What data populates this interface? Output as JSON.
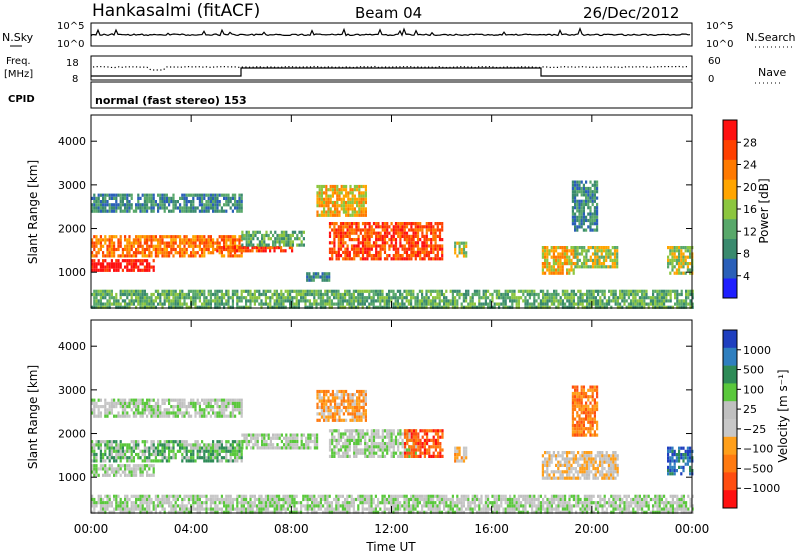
{
  "header": {
    "station": "Hankasalmi (fitACF)",
    "beam": "Beam 04",
    "date": "26/Dec/2012"
  },
  "top_panels": {
    "nsky_label": "N.Sky",
    "nsearch_label": "N.Search",
    "left_ticks": [
      "10^5",
      "10^0"
    ],
    "right_ticks": [
      "10^5",
      "10^0"
    ],
    "freq_label": "Freq.",
    "freq_unit": "[MHz]",
    "freq_ticks": [
      "18",
      "8"
    ],
    "nave_ticks": [
      "60",
      "0"
    ],
    "nave_label": "Nave",
    "cpid_label": "CPID",
    "cpid_text": "normal (fast stereo) 153"
  },
  "colors": {
    "power_scale": [
      "#1f1fff",
      "#2a5fb8",
      "#3a8a6e",
      "#58a86a",
      "#8cc63f",
      "#ffa500",
      "#ff7a00",
      "#ff4000",
      "#ff1010"
    ],
    "velocity_scale": [
      "#1f3fbf",
      "#2f7fbf",
      "#2e8b57",
      "#5ac83c",
      "#c0c0c0",
      "#c8c8c8",
      "#ff9f1a",
      "#ff7a10",
      "#ff4d10",
      "#ff1010"
    ]
  },
  "chart_data": [
    {
      "type": "heatmap",
      "quantity": "Power",
      "ylabel": "Slant Range [km]",
      "yticks": [
        "1000",
        "2000",
        "3000",
        "4000"
      ],
      "ylim": [
        180,
        4600
      ],
      "xlim": [
        0,
        24
      ],
      "colorbar": {
        "label": "Power [dB]",
        "ticks": [
          "4",
          "8",
          "12",
          "16",
          "20",
          "24",
          "28"
        ],
        "range": [
          0,
          32
        ]
      },
      "echo_regions": [
        {
          "t0": 0.0,
          "t1": 6.0,
          "r0": 2400,
          "r1": 2800,
          "level": 2
        },
        {
          "t0": 0.0,
          "t1": 6.0,
          "r0": 1400,
          "r1": 1850,
          "level": 6
        },
        {
          "t0": 0.0,
          "t1": 2.5,
          "r0": 1050,
          "r1": 1300,
          "level": 8
        },
        {
          "t0": 5.0,
          "t1": 8.0,
          "r0": 1500,
          "r1": 1600,
          "level": 7
        },
        {
          "t0": 6.0,
          "t1": 8.5,
          "r0": 1650,
          "r1": 1950,
          "level": 3
        },
        {
          "t0": 8.5,
          "t1": 9.5,
          "r0": 800,
          "r1": 1000,
          "level": 2
        },
        {
          "t0": 9.0,
          "t1": 11.0,
          "r0": 2300,
          "r1": 3000,
          "level": 5
        },
        {
          "t0": 9.5,
          "t1": 14.0,
          "r0": 1300,
          "r1": 2150,
          "level": 7
        },
        {
          "t0": 14.5,
          "t1": 15.0,
          "r0": 1400,
          "r1": 1700,
          "level": 4
        },
        {
          "t0": 18.0,
          "t1": 19.3,
          "r0": 950,
          "r1": 1600,
          "level": 5
        },
        {
          "t0": 19.3,
          "t1": 21.0,
          "r0": 1100,
          "r1": 1600,
          "level": 4
        },
        {
          "t0": 19.2,
          "t1": 20.2,
          "r0": 2000,
          "r1": 3100,
          "level": 2
        },
        {
          "t0": 23.0,
          "t1": 24.0,
          "r0": 950,
          "r1": 1600,
          "level": 4
        },
        {
          "t0": 0.0,
          "t1": 24.0,
          "r0": 200,
          "r1": 600,
          "level": 3
        }
      ]
    },
    {
      "type": "heatmap",
      "quantity": "Velocity",
      "ylabel": "Slant Range [km]",
      "xlabel": "Time UT",
      "xticks": [
        "00:00",
        "04:00",
        "08:00",
        "12:00",
        "16:00",
        "20:00",
        "00:00"
      ],
      "yticks": [
        "1000",
        "2000",
        "3000",
        "4000"
      ],
      "ylim": [
        180,
        4600
      ],
      "xlim": [
        0,
        24
      ],
      "colorbar": {
        "label": "Velocity [m s⁻¹]",
        "ticks": [
          "1000",
          "500",
          "100",
          "25",
          "−25",
          "−100",
          "−500",
          "−1000"
        ]
      },
      "echo_regions": [
        {
          "t0": 0.0,
          "t1": 6.0,
          "r0": 2400,
          "r1": 2800,
          "level": 4
        },
        {
          "t0": 0.0,
          "t1": 6.0,
          "r0": 1400,
          "r1": 1850,
          "level": 3
        },
        {
          "t0": 0.0,
          "t1": 2.5,
          "r0": 1050,
          "r1": 1300,
          "level": 4
        },
        {
          "t0": 6.0,
          "t1": 9.0,
          "r0": 1650,
          "r1": 2000,
          "level": 4
        },
        {
          "t0": 9.0,
          "t1": 11.0,
          "r0": 2300,
          "r1": 3000,
          "level": 6
        },
        {
          "t0": 9.5,
          "t1": 13.0,
          "r0": 1500,
          "r1": 2100,
          "level": 4
        },
        {
          "t0": 12.5,
          "t1": 14.0,
          "r0": 1500,
          "r1": 2100,
          "level": 8
        },
        {
          "t0": 14.5,
          "t1": 15.0,
          "r0": 1400,
          "r1": 1700,
          "level": 6
        },
        {
          "t0": 18.0,
          "t1": 21.0,
          "r0": 1000,
          "r1": 1600,
          "level": 5
        },
        {
          "t0": 19.2,
          "t1": 20.2,
          "r0": 2000,
          "r1": 3100,
          "level": 7
        },
        {
          "t0": 23.0,
          "t1": 24.0,
          "r0": 1100,
          "r1": 1700,
          "level": 1
        },
        {
          "t0": 0.0,
          "t1": 24.0,
          "r0": 200,
          "r1": 600,
          "level": 4
        }
      ]
    }
  ]
}
